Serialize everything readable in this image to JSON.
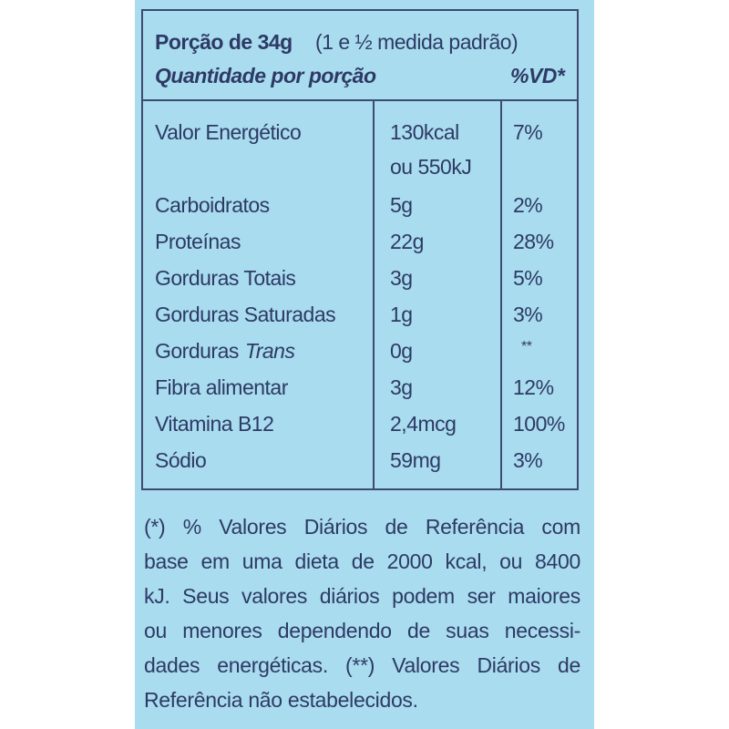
{
  "header": {
    "portion": "Porção de 34g",
    "portion_note": "(1 e ½ medida padrão)",
    "quantity": "Quantidade por porção",
    "vd": "%VD*"
  },
  "table": {
    "rows": [
      {
        "name": "Valor Energético",
        "amount": [
          "130kcal",
          "ou 550kJ"
        ],
        "vd": "7%"
      },
      {
        "name": "Carboidratos",
        "amount": [
          "5g"
        ],
        "vd": "2%"
      },
      {
        "name": "Proteínas",
        "amount": [
          "22g"
        ],
        "vd": "28%"
      },
      {
        "name": "Gorduras Totais",
        "amount": [
          "3g"
        ],
        "vd": "5%"
      },
      {
        "name": "Gorduras Saturadas",
        "amount": [
          "1g"
        ],
        "vd": "3%"
      },
      {
        "name": "Gorduras",
        "name_italic": "Trans",
        "amount": [
          "0g"
        ],
        "vd": "**"
      },
      {
        "name": "Fibra alimentar",
        "amount": [
          "3g"
        ],
        "vd": "12%"
      },
      {
        "name": "Vitamina B12",
        "amount": [
          "2,4mcg"
        ],
        "vd": "100%"
      },
      {
        "name": "Sódio",
        "amount": [
          "59mg"
        ],
        "vd": "3%"
      }
    ]
  },
  "footnote": {
    "lines": [
      "(*) % Valores Diários de Referência com",
      "base em uma dieta de 2000 kcal, ou 8400",
      "kJ. Seus valores diários podem ser maiores",
      "ou menores dependendo de suas necessi-",
      "dades energéticas. (**) Valores Diários de",
      "Referência não estabelecidos."
    ]
  }
}
